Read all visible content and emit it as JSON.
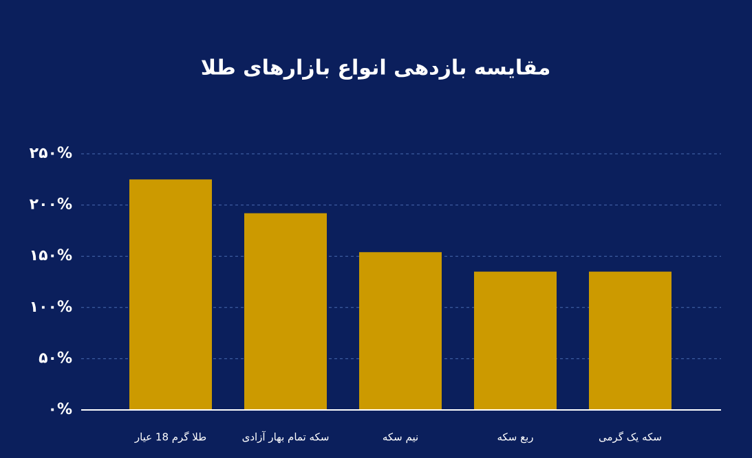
{
  "chart_data": {
    "type": "bar",
    "title": "مقایسه بازدهی انواع بازارهای طلا",
    "categories": [
      "طلا گرم 18 عیار",
      "سکه تمام بهار آزادی",
      "نیم سکه",
      "ربع سکه",
      "سکه یک گرمی"
    ],
    "values": [
      225,
      192,
      154,
      135,
      135
    ],
    "color": "#cc9a00",
    "ylim": [
      0,
      250
    ],
    "yticks": [
      {
        "value": 0,
        "label": "۰%"
      },
      {
        "value": 50,
        "label": "۵۰%"
      },
      {
        "value": 100,
        "label": "۱۰۰%"
      },
      {
        "value": 150,
        "label": "۱۵۰%"
      },
      {
        "value": 200,
        "label": "۲۰۰%"
      },
      {
        "value": 250,
        "label": "۲۵۰%"
      }
    ],
    "grid": true
  }
}
